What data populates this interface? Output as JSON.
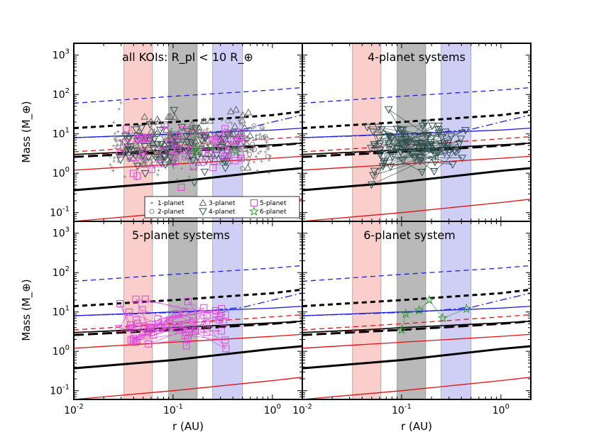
{
  "chart_data": {
    "type": "scatter",
    "xlabel": "r (AU)",
    "ylabel": "Mass (M_⊕)",
    "x_scale": "log",
    "y_scale": "log",
    "xlim": [
      0.01,
      2.0
    ],
    "ylim": [
      0.06,
      2000
    ],
    "x_ticks": [
      0.01,
      0.1,
      1.0
    ],
    "x_tick_labels": [
      "10^-2",
      "10^-1",
      "10^0"
    ],
    "y_ticks": [
      0.1,
      1,
      10,
      100,
      1000
    ],
    "y_tick_labels": [
      "10^-1",
      "10^0",
      "10^1",
      "10^2",
      "10^3"
    ],
    "bands": [
      {
        "name": "red-band",
        "x_range": [
          0.032,
          0.062
        ],
        "color": "#f4a6a0"
      },
      {
        "name": "gray-band",
        "x_range": [
          0.09,
          0.175
        ],
        "color": "#7f7f7f"
      },
      {
        "name": "blue-band",
        "x_range": [
          0.25,
          0.5
        ],
        "color": "#a7a7ee"
      }
    ],
    "reference_curves": [
      {
        "name": "blue-dashed",
        "color": "#1f1fdd",
        "style": "dash",
        "width": 1.3,
        "points": [
          [
            0.01,
            60
          ],
          [
            0.1,
            90
          ],
          [
            1,
            130
          ],
          [
            2,
            150
          ]
        ]
      },
      {
        "name": "black-dashed",
        "color": "#000000",
        "style": "dash",
        "width": 3.0,
        "points": [
          [
            0.01,
            14
          ],
          [
            0.1,
            20
          ],
          [
            1,
            30
          ],
          [
            2,
            37
          ]
        ]
      },
      {
        "name": "blue-solid",
        "color": "#1f1fdd",
        "style": "solid",
        "width": 1.3,
        "points": [
          [
            0.01,
            8
          ],
          [
            0.1,
            10
          ],
          [
            1,
            12.5
          ],
          [
            2,
            14
          ]
        ]
      },
      {
        "name": "blue-dashdot",
        "color": "#1f1fdd",
        "style": "dashdot",
        "width": 1.3,
        "points": [
          [
            0.01,
            8
          ],
          [
            0.15,
            10
          ],
          [
            0.5,
            13
          ],
          [
            1.0,
            20
          ],
          [
            2,
            30
          ]
        ]
      },
      {
        "name": "red-dashed",
        "color": "#dd1111",
        "style": "dash",
        "width": 1.3,
        "points": [
          [
            0.01,
            3.5
          ],
          [
            0.1,
            5.0
          ],
          [
            1,
            7.5
          ],
          [
            2,
            8.5
          ]
        ]
      },
      {
        "name": "red-dashdot",
        "color": "#dd1111",
        "style": "dashdot",
        "width": 1.3,
        "points": [
          [
            0.01,
            3.0
          ],
          [
            0.1,
            3.6
          ],
          [
            1,
            5.0
          ],
          [
            2,
            6.0
          ]
        ]
      },
      {
        "name": "black-longdash",
        "color": "#000000",
        "style": "longdash",
        "width": 3.0,
        "points": [
          [
            0.01,
            2.6
          ],
          [
            0.1,
            3.5
          ],
          [
            1,
            5.0
          ],
          [
            2,
            5.8
          ]
        ]
      },
      {
        "name": "black-solid-thin",
        "color": "#000000",
        "style": "solid",
        "width": 1.6,
        "points": [
          [
            0.01,
            3.0
          ],
          [
            0.05,
            3.6
          ],
          [
            0.1,
            4.0
          ],
          [
            1,
            5.3
          ],
          [
            2,
            5.8
          ]
        ]
      },
      {
        "name": "red-solid-upper",
        "color": "#dd1111",
        "style": "solid",
        "width": 1.3,
        "points": [
          [
            0.01,
            1.2
          ],
          [
            0.1,
            1.7
          ],
          [
            1,
            2.4
          ],
          [
            2,
            2.7
          ]
        ]
      },
      {
        "name": "black-solid-thick",
        "color": "#000000",
        "style": "solid",
        "width": 3.0,
        "points": [
          [
            0.01,
            0.37
          ],
          [
            0.1,
            0.6
          ],
          [
            1,
            1.15
          ],
          [
            2,
            1.35
          ]
        ]
      },
      {
        "name": "red-solid-lower",
        "color": "#dd1111",
        "style": "solid",
        "width": 1.3,
        "points": [
          [
            0.01,
            0.06
          ],
          [
            0.1,
            0.1
          ],
          [
            1,
            0.18
          ],
          [
            2,
            0.22
          ]
        ]
      }
    ],
    "legend": {
      "location": "bottom",
      "entries": [
        {
          "label": "1-planet",
          "marker": "plus",
          "color": "#888888"
        },
        {
          "label": "2-planet",
          "marker": "circle",
          "color": "#888888"
        },
        {
          "label": "3-planet",
          "marker": "triangle-up",
          "color": "#666666"
        },
        {
          "label": "4-planet",
          "marker": "triangle-down",
          "color": "#2f4f4f"
        },
        {
          "label": "5-planet",
          "marker": "square",
          "color": "#dd44dd"
        },
        {
          "label": "6-planet",
          "marker": "star",
          "color": "#339933"
        }
      ]
    },
    "panels": [
      {
        "id": "all-kois",
        "title": "all KOIs: R_pl < 10 R_⊕",
        "scatter_note": "dense cloud of markers from all systems, roughly r 0.012–0.9 AU, mass 0.1–120 M_⊕",
        "series": [
          {
            "name": "1-planet",
            "marker": "plus",
            "color": "#888888",
            "count": 300,
            "seed": 11,
            "r_range": [
              0.012,
              0.95
            ],
            "m_range": [
              0.15,
              120
            ],
            "m_center": 4.5
          },
          {
            "name": "2-planet",
            "marker": "circle",
            "color": "#888888",
            "count": 80,
            "seed": 12,
            "r_range": [
              0.02,
              0.9
            ],
            "m_range": [
              0.4,
              60
            ],
            "m_center": 5
          },
          {
            "name": "3-planet",
            "marker": "triangle-up",
            "color": "#666666",
            "count": 70,
            "seed": 13,
            "r_range": [
              0.03,
              0.6
            ],
            "m_range": [
              1,
              60
            ],
            "m_center": 8
          },
          {
            "name": "4-planet",
            "marker": "triangle-down",
            "color": "#2f4f4f",
            "count": 80,
            "seed": 14,
            "r_range": [
              0.018,
              0.45
            ],
            "m_range": [
              0.12,
              100
            ],
            "m_center": 5
          },
          {
            "name": "5-planet",
            "marker": "square",
            "color": "#dd44dd",
            "count": 60,
            "seed": 15,
            "r_range": [
              0.017,
              0.5
            ],
            "m_range": [
              0.25,
              35
            ],
            "m_center": 4.5
          },
          {
            "name": "6-planet",
            "marker": "star",
            "color": "#339933",
            "count": 6,
            "seed": 16,
            "r_range": [
              0.1,
              0.45
            ],
            "m_range": [
              3.5,
              20
            ],
            "m_center": 9
          }
        ]
      },
      {
        "id": "four-planet",
        "title": "4-planet systems",
        "series": [
          {
            "name": "4-planet",
            "marker": "triangle-down",
            "color": "#2f4f4f",
            "count": 90,
            "seed": 21,
            "r_range": [
              0.03,
              0.45
            ],
            "m_range": [
              0.1,
              100
            ],
            "m_center": 5,
            "connected": true
          }
        ]
      },
      {
        "id": "five-planet",
        "title": "5-planet systems",
        "series": [
          {
            "name": "5-planet",
            "marker": "square",
            "color": "#dd44dd",
            "count": 55,
            "seed": 31,
            "r_range": [
              0.018,
              0.35
            ],
            "m_range": [
              0.25,
              35
            ],
            "m_center": 4.5,
            "connected": true
          }
        ]
      },
      {
        "id": "six-planet",
        "title": "6-planet system",
        "series": [
          {
            "name": "6-planet",
            "marker": "star",
            "color": "#339933",
            "connected": true,
            "points": [
              [
                0.1,
                3.5
              ],
              [
                0.11,
                9
              ],
              [
                0.15,
                11
              ],
              [
                0.19,
                20
              ],
              [
                0.26,
                7
              ],
              [
                0.45,
                12
              ]
            ]
          }
        ]
      }
    ]
  }
}
